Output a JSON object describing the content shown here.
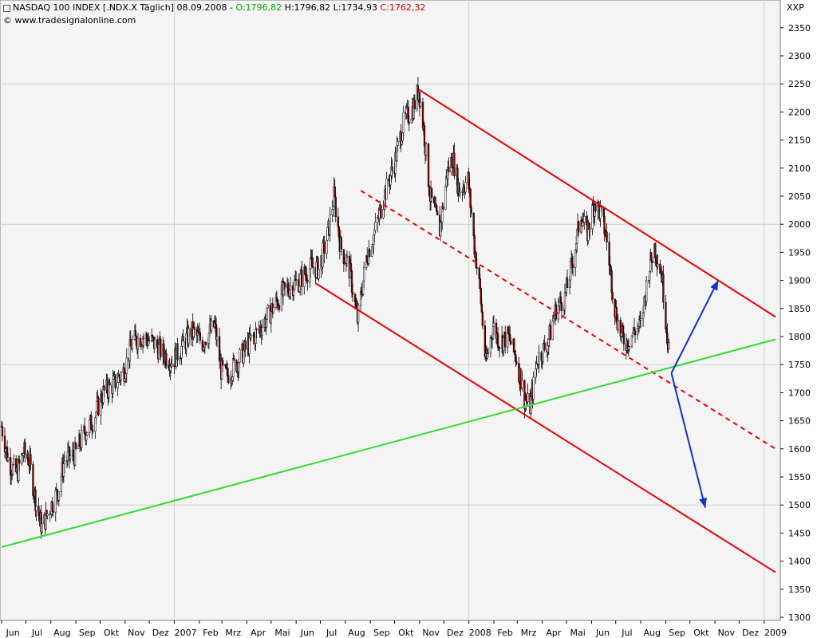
{
  "header": {
    "title": "NASDAQ 100 INDEX [.NDX.X  Täglich] 08.09.2008 -",
    "open": "O:1796,82",
    "high": "H:1796,82",
    "low": "L:1734,93",
    "close": "C:1762,32",
    "copyright": "© www.tradesignalonline.com",
    "scale_name": "XXP"
  },
  "colors": {
    "background": "#f4f4f4",
    "grid": "#c8d8c8",
    "price_line": "#000000",
    "bar_down": "#8b0000",
    "channel": "#ee0000",
    "support": "#33dd33",
    "arrow": "#1133cc"
  },
  "chart_data": {
    "type": "line",
    "instrument": "NASDAQ 100 INDEX",
    "interval": "Täglich",
    "ylim": [
      1300,
      2350
    ],
    "y_ticks": [
      1300,
      1350,
      1400,
      1450,
      1500,
      1550,
      1600,
      1650,
      1700,
      1750,
      1800,
      1850,
      1900,
      1950,
      2000,
      2050,
      2100,
      2150,
      2200,
      2250,
      2300,
      2350
    ],
    "x_labels": [
      "Jun",
      "Jul",
      "Aug",
      "Sep",
      "Okt",
      "Nov",
      "Dez",
      "2007",
      "Feb",
      "Mrz",
      "Apr",
      "Mai",
      "Jun",
      "Jul",
      "Aug",
      "Sep",
      "Okt",
      "Nov",
      "Dez",
      "2008",
      "Feb",
      "Mrz",
      "Apr",
      "Mai",
      "Jun",
      "Jul",
      "Aug",
      "Sep",
      "Okt",
      "Nov",
      "Dez",
      "2009"
    ],
    "x_start": "2006-06-01",
    "x_end": "2009-01-15",
    "series": [
      {
        "points": [
          [
            "2006-06-01",
            1640
          ],
          [
            "2006-06-10",
            1575
          ],
          [
            "2006-06-20",
            1555
          ],
          [
            "2006-06-28",
            1595
          ],
          [
            "2006-07-05",
            1580
          ],
          [
            "2006-07-14",
            1500
          ],
          [
            "2006-07-21",
            1460
          ],
          [
            "2006-07-31",
            1495
          ],
          [
            "2006-08-10",
            1525
          ],
          [
            "2006-08-18",
            1580
          ],
          [
            "2006-08-31",
            1590
          ],
          [
            "2006-09-12",
            1630
          ],
          [
            "2006-09-22",
            1650
          ],
          [
            "2006-10-05",
            1700
          ],
          [
            "2006-10-18",
            1715
          ],
          [
            "2006-10-31",
            1740
          ],
          [
            "2006-11-10",
            1790
          ],
          [
            "2006-11-22",
            1800
          ],
          [
            "2006-12-05",
            1790
          ],
          [
            "2006-12-15",
            1775
          ],
          [
            "2006-12-29",
            1755
          ],
          [
            "2007-01-10",
            1780
          ],
          [
            "2007-01-22",
            1810
          ],
          [
            "2007-02-05",
            1790
          ],
          [
            "2007-02-20",
            1820
          ],
          [
            "2007-02-28",
            1740
          ],
          [
            "2007-03-07",
            1730
          ],
          [
            "2007-03-20",
            1755
          ],
          [
            "2007-04-05",
            1790
          ],
          [
            "2007-04-20",
            1820
          ],
          [
            "2007-05-05",
            1855
          ],
          [
            "2007-05-20",
            1885
          ],
          [
            "2007-06-05",
            1900
          ],
          [
            "2007-06-20",
            1925
          ],
          [
            "2007-06-29",
            1920
          ],
          [
            "2007-07-10",
            1980
          ],
          [
            "2007-07-18",
            2050
          ],
          [
            "2007-07-26",
            1960
          ],
          [
            "2007-08-06",
            1920
          ],
          [
            "2007-08-16",
            1830
          ],
          [
            "2007-08-27",
            1940
          ],
          [
            "2007-09-07",
            1990
          ],
          [
            "2007-09-18",
            2050
          ],
          [
            "2007-10-01",
            2110
          ],
          [
            "2007-10-12",
            2180
          ],
          [
            "2007-10-25",
            2210
          ],
          [
            "2007-10-31",
            2240
          ],
          [
            "2007-11-06",
            2170
          ],
          [
            "2007-11-14",
            2050
          ],
          [
            "2007-11-26",
            1990
          ],
          [
            "2007-12-05",
            2090
          ],
          [
            "2007-12-12",
            2120
          ],
          [
            "2007-12-20",
            2060
          ],
          [
            "2007-12-31",
            2080
          ],
          [
            "2008-01-08",
            1960
          ],
          [
            "2008-01-15",
            1880
          ],
          [
            "2008-01-22",
            1750
          ],
          [
            "2008-01-31",
            1820
          ],
          [
            "2008-02-08",
            1790
          ],
          [
            "2008-02-19",
            1800
          ],
          [
            "2008-02-29",
            1760
          ],
          [
            "2008-03-10",
            1690
          ],
          [
            "2008-03-17",
            1675
          ],
          [
            "2008-03-26",
            1760
          ],
          [
            "2008-04-08",
            1790
          ],
          [
            "2008-04-18",
            1850
          ],
          [
            "2008-04-29",
            1870
          ],
          [
            "2008-05-08",
            1930
          ],
          [
            "2008-05-19",
            2020
          ],
          [
            "2008-05-26",
            1980
          ],
          [
            "2008-06-05",
            2040
          ],
          [
            "2008-06-12",
            2020
          ],
          [
            "2008-06-19",
            1980
          ],
          [
            "2008-06-30",
            1850
          ],
          [
            "2008-07-08",
            1800
          ],
          [
            "2008-07-15",
            1790
          ],
          [
            "2008-07-24",
            1810
          ],
          [
            "2008-08-01",
            1820
          ],
          [
            "2008-08-11",
            1920
          ],
          [
            "2008-08-18",
            1960
          ],
          [
            "2008-08-27",
            1910
          ],
          [
            "2008-09-03",
            1800
          ],
          [
            "2008-09-08",
            1762
          ]
        ]
      }
    ],
    "trendlines": [
      {
        "name": "channel-upper",
        "style": "solid",
        "color": "#ee0000",
        "points": [
          [
            "2007-10-31",
            2240
          ],
          [
            "2009-01-15",
            1835
          ]
        ]
      },
      {
        "name": "channel-mid",
        "style": "dashed",
        "color": "#ee0000",
        "points": [
          [
            "2007-08-20",
            2060
          ],
          [
            "2009-01-15",
            1600
          ]
        ]
      },
      {
        "name": "channel-lower",
        "style": "solid",
        "color": "#ee0000",
        "points": [
          [
            "2007-06-25",
            1895
          ],
          [
            "2009-01-15",
            1380
          ]
        ]
      },
      {
        "name": "support",
        "style": "solid",
        "color": "#33dd33",
        "points": [
          [
            "2006-06-01",
            1425
          ],
          [
            "2009-01-15",
            1795
          ]
        ]
      }
    ],
    "arrows": [
      {
        "name": "arrow-up",
        "color": "#1133cc",
        "from": [
          "2008-09-08",
          1735
        ],
        "to": [
          "2008-11-05",
          1900
        ]
      },
      {
        "name": "arrow-down",
        "color": "#1133cc",
        "from": [
          "2008-09-08",
          1735
        ],
        "to": [
          "2008-10-20",
          1495
        ]
      }
    ],
    "grid": true
  }
}
